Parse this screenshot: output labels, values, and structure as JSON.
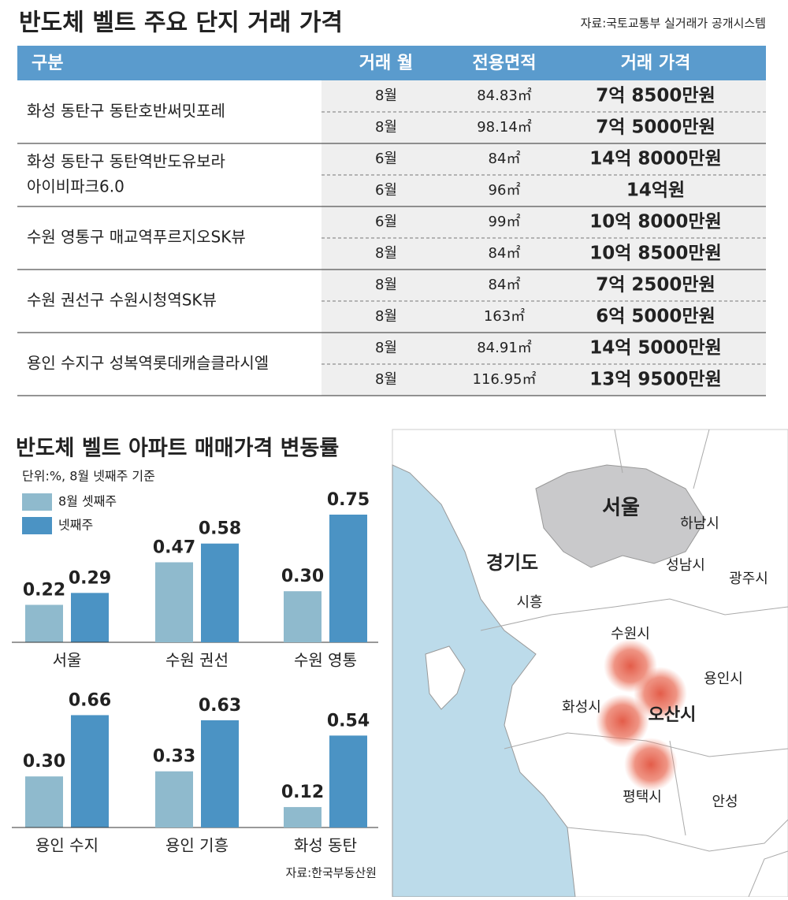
{
  "table": {
    "title": "반도체 벨트 주요 단지 거래 가격",
    "source": "자료:국토교통부 실거래가 공개시스템",
    "headers": [
      "구분",
      "거래 월",
      "전용면적",
      "거래 가격"
    ],
    "groups": [
      {
        "name": [
          "화성 동탄구 동탄호반써밋포레"
        ],
        "rows": [
          [
            "8월",
            "84.83㎡",
            "7억 8500만원"
          ],
          [
            "8월",
            "98.14㎡",
            "7억 5000만원"
          ]
        ]
      },
      {
        "name": [
          "화성 동탄구 동탄역반도유보라",
          "아이비파크6.0"
        ],
        "rows": [
          [
            "6월",
            "84㎡",
            "14억 8000만원"
          ],
          [
            "6월",
            "96㎡",
            "14억원"
          ]
        ]
      },
      {
        "name": [
          "수원 영통구 매교역푸르지오SK뷰"
        ],
        "rows": [
          [
            "6월",
            "99㎡",
            "10억 8000만원"
          ],
          [
            "8월",
            "84㎡",
            "10억 8500만원"
          ]
        ]
      },
      {
        "name": [
          "수원 권선구 수원시청역SK뷰"
        ],
        "rows": [
          [
            "8월",
            "84㎡",
            "7억 2500만원"
          ],
          [
            "8월",
            "163㎡",
            "6억 5000만원"
          ]
        ]
      },
      {
        "name": [
          "용인 수지구 성복역롯데캐슬클라시엘"
        ],
        "rows": [
          [
            "8월",
            "84.91㎡",
            "14억 5000만원"
          ],
          [
            "8월",
            "116.95㎡",
            "13억 9500만원"
          ]
        ]
      }
    ]
  },
  "chart_data": {
    "type": "bar",
    "title": "반도체 벨트 아파트 매매가격 변동률",
    "subtitle": "단위:%, 8월 넷째주 기준",
    "source": "자료:한국부동산원",
    "categories": [
      "서울",
      "수원 권선",
      "수원 영통",
      "용인 수지",
      "용인 기흥",
      "화성 동탄"
    ],
    "series": [
      {
        "name": "8월 셋째주",
        "color": "#8fbacd",
        "values": [
          0.22,
          0.47,
          0.3,
          0.3,
          0.33,
          0.12
        ],
        "value_labels": [
          "0.22",
          "0.47",
          "0.30",
          "0.30",
          "0.33",
          "0.12"
        ]
      },
      {
        "name": "넷째주",
        "color": "#4b93c4",
        "values": [
          0.29,
          0.58,
          0.75,
          0.66,
          0.63,
          0.54
        ],
        "value_labels": [
          "0.29",
          "0.58",
          "0.75",
          "0.66",
          "0.63",
          "0.54"
        ]
      }
    ]
  },
  "map": {
    "labels": [
      "서울",
      "하남시",
      "경기도",
      "성남시",
      "광주시",
      "시흥",
      "수원시",
      "용인시",
      "화성시",
      "오산시",
      "평택시",
      "안성"
    ]
  }
}
